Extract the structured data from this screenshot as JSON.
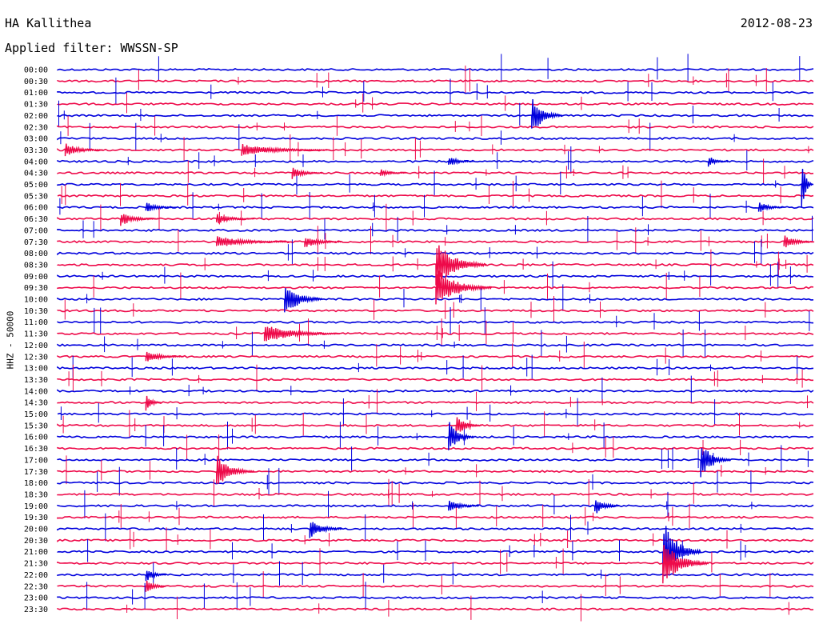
{
  "header": {
    "station": "HA Kallithea",
    "date": "2012-08-23",
    "filter": "Applied filter: WWSSN-SP"
  },
  "channel_label": "HHZ - 50000",
  "colors": {
    "trace_a": "#0000dd",
    "trace_b": "#ee0a4a"
  },
  "chart_data": {
    "type": "line",
    "title": "HA Kallithea",
    "subtitle": "Applied filter: WWSSN-SP",
    "date": "2012-08-23",
    "ylabel": "HHZ - 50000",
    "categories": [
      "00:00",
      "00:30",
      "01:00",
      "01:30",
      "02:00",
      "02:30",
      "03:00",
      "03:30",
      "04:00",
      "04:30",
      "05:00",
      "05:30",
      "06:00",
      "06:30",
      "07:00",
      "07:30",
      "08:00",
      "08:30",
      "09:00",
      "09:30",
      "10:00",
      "10:30",
      "11:00",
      "11:30",
      "12:00",
      "12:30",
      "13:00",
      "13:30",
      "14:00",
      "14:30",
      "15:00",
      "15:30",
      "16:00",
      "16:30",
      "17:00",
      "17:30",
      "18:00",
      "18:30",
      "19:00",
      "19:30",
      "20:00",
      "20:30",
      "21:00",
      "21:30",
      "22:00",
      "22:30",
      "23:00",
      "23:30"
    ],
    "xlim": [
      0,
      30
    ],
    "x_unit": "minutes",
    "grid": false,
    "legend": "none",
    "bursts": [
      {
        "row": 4,
        "minute": 18.8,
        "amplitude": 26,
        "duration": 1.2
      },
      {
        "row": 7,
        "minute": 0.3,
        "amplitude": 9,
        "duration": 1.5
      },
      {
        "row": 7,
        "minute": 7.3,
        "amplitude": 8,
        "duration": 3.5
      },
      {
        "row": 8,
        "minute": 15.5,
        "amplitude": 7,
        "duration": 1.0
      },
      {
        "row": 8,
        "minute": 25.8,
        "amplitude": 8,
        "duration": 0.8
      },
      {
        "row": 9,
        "minute": 9.3,
        "amplitude": 8,
        "duration": 1.2
      },
      {
        "row": 9,
        "minute": 12.8,
        "amplitude": 5,
        "duration": 1.0
      },
      {
        "row": 10,
        "minute": 29.5,
        "amplitude": 40,
        "duration": 0.4
      },
      {
        "row": 12,
        "minute": 3.5,
        "amplitude": 7,
        "duration": 1.2
      },
      {
        "row": 12,
        "minute": 27.8,
        "amplitude": 8,
        "duration": 1.0
      },
      {
        "row": 13,
        "minute": 2.5,
        "amplitude": 9,
        "duration": 1.5
      },
      {
        "row": 13,
        "minute": 6.3,
        "amplitude": 7,
        "duration": 1.5
      },
      {
        "row": 15,
        "minute": 6.3,
        "amplitude": 8,
        "duration": 3.0
      },
      {
        "row": 15,
        "minute": 9.8,
        "amplitude": 8,
        "duration": 1.5
      },
      {
        "row": 15,
        "minute": 28.8,
        "amplitude": 9,
        "duration": 2.5
      },
      {
        "row": 17,
        "minute": 15.0,
        "amplitude": 32,
        "duration": 2.0
      },
      {
        "row": 19,
        "minute": 15.0,
        "amplitude": 26,
        "duration": 2.2
      },
      {
        "row": 20,
        "minute": 9.0,
        "amplitude": 24,
        "duration": 1.5
      },
      {
        "row": 23,
        "minute": 8.2,
        "amplitude": 12,
        "duration": 3.0
      },
      {
        "row": 25,
        "minute": 3.5,
        "amplitude": 8,
        "duration": 1.5
      },
      {
        "row": 29,
        "minute": 3.5,
        "amplitude": 12,
        "duration": 0.6
      },
      {
        "row": 31,
        "minute": 15.8,
        "amplitude": 14,
        "duration": 1.0
      },
      {
        "row": 32,
        "minute": 15.5,
        "amplitude": 22,
        "duration": 1.0
      },
      {
        "row": 34,
        "minute": 25.5,
        "amplitude": 24,
        "duration": 1.2
      },
      {
        "row": 35,
        "minute": 6.3,
        "amplitude": 22,
        "duration": 1.5
      },
      {
        "row": 38,
        "minute": 15.5,
        "amplitude": 10,
        "duration": 1.2
      },
      {
        "row": 38,
        "minute": 21.3,
        "amplitude": 12,
        "duration": 1.0
      },
      {
        "row": 40,
        "minute": 10.0,
        "amplitude": 14,
        "duration": 1.3
      },
      {
        "row": 42,
        "minute": 24.0,
        "amplitude": 44,
        "duration": 1.5
      },
      {
        "row": 43,
        "minute": 24.0,
        "amplitude": 30,
        "duration": 1.8
      },
      {
        "row": 44,
        "minute": 3.5,
        "amplitude": 10,
        "duration": 0.8
      },
      {
        "row": 45,
        "minute": 3.5,
        "amplitude": 12,
        "duration": 0.8
      }
    ]
  }
}
